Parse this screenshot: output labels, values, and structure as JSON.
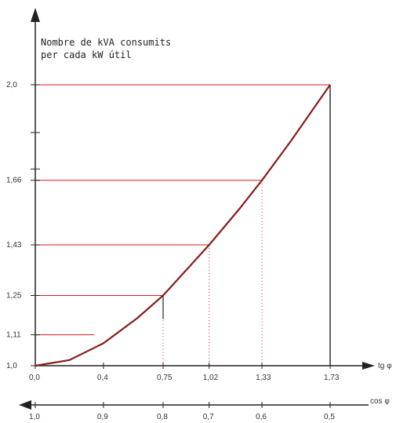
{
  "chart_data": {
    "type": "line",
    "title_lines": [
      "Nombre de kVA consumits",
      "per cada kW útil"
    ],
    "xlabel": "tg φ",
    "x2label": "cos φ",
    "ylim": [
      1.0,
      2.0
    ],
    "xlim": [
      0.0,
      1.73
    ],
    "y_ticks": [
      "1,0",
      "1,11",
      "1,25",
      "1,43",
      "1,66",
      "2,0"
    ],
    "x_ticks": [
      "0,0",
      "0,4",
      "0,75",
      "1,02",
      "1,33",
      "1,73"
    ],
    "cos_ticks": [
      "1,0",
      "0,9",
      "0,8",
      "0,7",
      "0,6",
      "0,5"
    ],
    "series": [
      {
        "x": [
          0.0,
          0.2,
          0.4,
          0.6,
          0.75,
          0.9,
          1.02,
          1.2,
          1.33,
          1.5,
          1.73
        ],
        "y": [
          1.0,
          1.02,
          1.08,
          1.17,
          1.25,
          1.35,
          1.43,
          1.56,
          1.66,
          1.8,
          2.0
        ]
      }
    ],
    "markers": [
      {
        "x": 0.75,
        "y": 1.25
      },
      {
        "x": 1.02,
        "y": 1.43
      },
      {
        "x": 1.33,
        "y": 1.66
      },
      {
        "x": 1.73,
        "y": 2.0
      }
    ],
    "colors": {
      "curve": "#8a1a1a",
      "guides": "#d81b1b",
      "axes": "#222222"
    }
  }
}
